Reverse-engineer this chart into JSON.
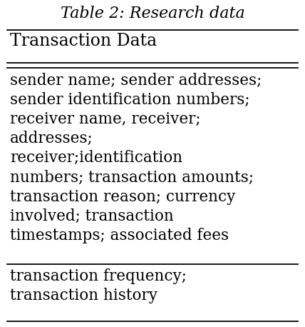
{
  "title": "Table 2: Research data",
  "header": "Transaction Data",
  "row1": "sender name; sender addresses;\nsender identification numbers;\nreceiver name, receiver;\naddresses;\nreceiver;identification\nnumbers; transaction amounts;\ntransaction reason; currency\ninvolved; transaction\ntimestamps; associated fees",
  "row2": "transaction frequency;\ntransaction history",
  "bg_color": "#ffffff",
  "text_color": "#000000",
  "title_fontsize": 16,
  "header_fontsize": 17,
  "body_fontsize": 15.5
}
